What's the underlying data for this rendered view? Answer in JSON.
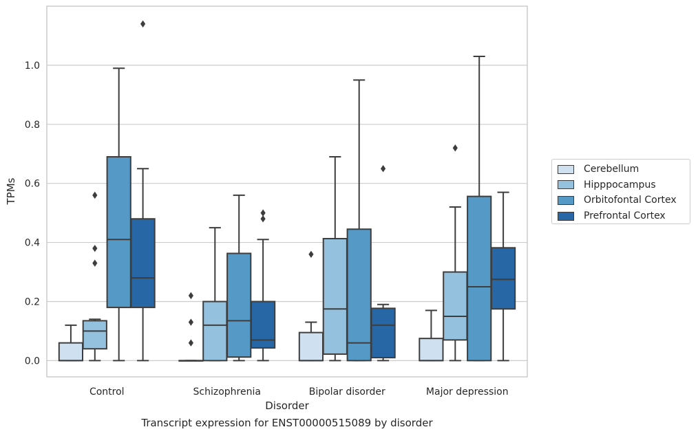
{
  "chart_data": {
    "type": "box",
    "xlabel": "Disorder",
    "ylabel": "TPMs",
    "ylim": [
      -0.055,
      1.2
    ],
    "yticks": [
      "0.0",
      "0.2",
      "0.4",
      "0.6",
      "0.8",
      "1.0"
    ],
    "grid": true,
    "legend_position": "right",
    "categories": [
      "Control",
      "Schizophrenia",
      "Bipolar disorder",
      "Major depression"
    ],
    "series": [
      {
        "name": "Cerebellum",
        "color": "#cfe0f0",
        "boxes": [
          {
            "whislo": 0.0,
            "q1": 0.0,
            "med": 0.0,
            "q3": 0.06,
            "whishi": 0.12,
            "fliers": []
          },
          {
            "whislo": 0.0,
            "q1": 0.0,
            "med": 0.0,
            "q3": 0.0,
            "whishi": 0.0,
            "fliers": [
              0.22,
              0.13,
              0.06
            ]
          },
          {
            "whislo": 0.0,
            "q1": 0.0,
            "med": 0.0,
            "q3": 0.095,
            "whishi": 0.13,
            "fliers": [
              0.36
            ]
          },
          {
            "whislo": 0.0,
            "q1": 0.0,
            "med": 0.0,
            "q3": 0.075,
            "whishi": 0.17,
            "fliers": []
          }
        ]
      },
      {
        "name": "Hipppocampus",
        "color": "#94c1dd",
        "boxes": [
          {
            "whislo": 0.0,
            "q1": 0.04,
            "med": 0.1,
            "q3": 0.135,
            "whishi": 0.14,
            "fliers": [
              0.56,
              0.38,
              0.33
            ]
          },
          {
            "whislo": 0.0,
            "q1": 0.0,
            "med": 0.12,
            "q3": 0.2,
            "whishi": 0.45,
            "fliers": []
          },
          {
            "whislo": 0.0,
            "q1": 0.022,
            "med": 0.175,
            "q3": 0.413,
            "whishi": 0.69,
            "fliers": []
          },
          {
            "whislo": 0.0,
            "q1": 0.07,
            "med": 0.15,
            "q3": 0.3,
            "whishi": 0.52,
            "fliers": [
              0.72
            ]
          }
        ]
      },
      {
        "name": "Orbitofontal Cortex",
        "color": "#5599c6",
        "boxes": [
          {
            "whislo": 0.0,
            "q1": 0.18,
            "med": 0.41,
            "q3": 0.69,
            "whishi": 0.99,
            "fliers": []
          },
          {
            "whislo": 0.0,
            "q1": 0.012,
            "med": 0.135,
            "q3": 0.363,
            "whishi": 0.56,
            "fliers": []
          },
          {
            "whislo": 0.0,
            "q1": 0.0,
            "med": 0.06,
            "q3": 0.445,
            "whishi": 0.95,
            "fliers": []
          },
          {
            "whislo": 0.0,
            "q1": 0.0,
            "med": 0.25,
            "q3": 0.556,
            "whishi": 1.03,
            "fliers": []
          }
        ]
      },
      {
        "name": "Prefrontal Cortex",
        "color": "#2767a6",
        "boxes": [
          {
            "whislo": 0.0,
            "q1": 0.18,
            "med": 0.28,
            "q3": 0.48,
            "whishi": 0.65,
            "fliers": [
              1.14
            ]
          },
          {
            "whislo": 0.0,
            "q1": 0.043,
            "med": 0.07,
            "q3": 0.2,
            "whishi": 0.41,
            "fliers": [
              0.5,
              0.48
            ]
          },
          {
            "whislo": 0.0,
            "q1": 0.01,
            "med": 0.12,
            "q3": 0.177,
            "whishi": 0.19,
            "fliers": [
              0.65
            ]
          },
          {
            "whislo": 0.0,
            "q1": 0.175,
            "med": 0.275,
            "q3": 0.382,
            "whishi": 0.57,
            "fliers": []
          }
        ]
      }
    ],
    "caption": "Transcript expression for ENST00000515089 by disorder"
  }
}
